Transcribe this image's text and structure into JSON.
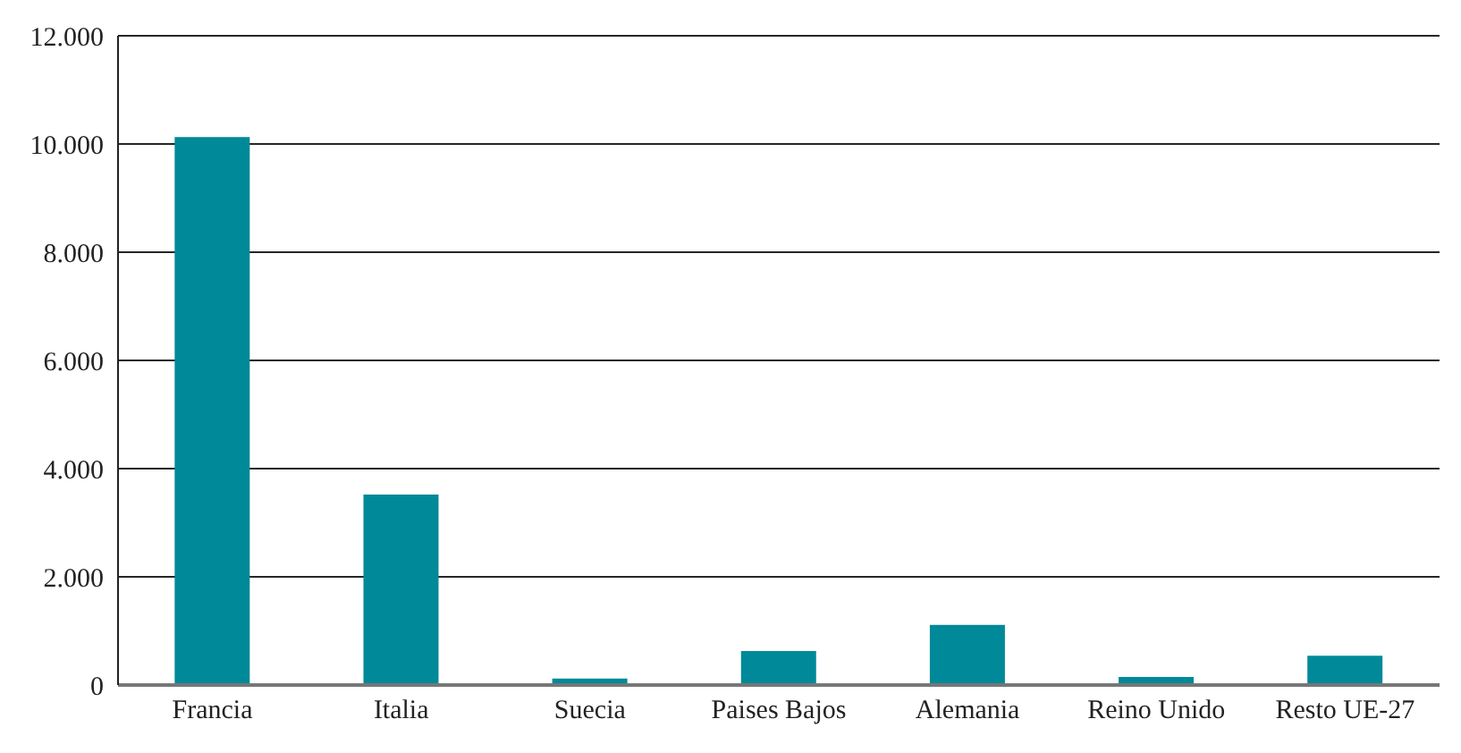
{
  "chart_data": {
    "type": "bar",
    "categories": [
      "Francia",
      "Italia",
      "Suecia",
      "Paises Bajos",
      "Alemania",
      "Reino Unido",
      "Resto UE-27"
    ],
    "values": [
      10130,
      3520,
      120,
      630,
      1110,
      150,
      540
    ],
    "color": "#008998",
    "ylim": [
      0,
      12000
    ],
    "yticks": [
      {
        "value": 0,
        "label": "0"
      },
      {
        "value": 2000,
        "label": "2.000"
      },
      {
        "value": 4000,
        "label": "4.000"
      },
      {
        "value": 6000,
        "label": "6.000"
      },
      {
        "value": 8000,
        "label": "8.000"
      },
      {
        "value": 10000,
        "label": "10.000"
      },
      {
        "value": 12000,
        "label": "12.000"
      }
    ],
    "grid": "y",
    "legend": false
  }
}
